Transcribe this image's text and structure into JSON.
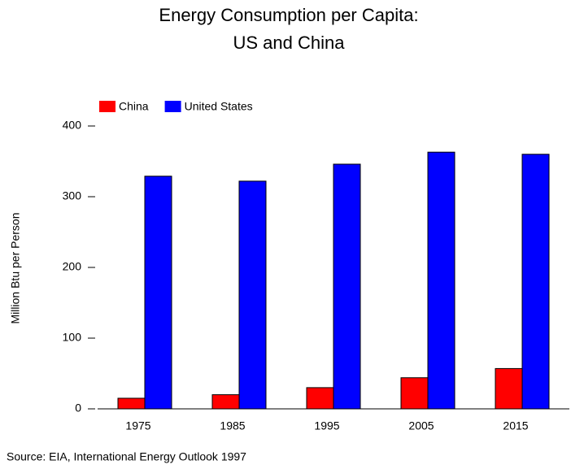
{
  "chart_data": {
    "type": "bar",
    "title": [
      "Energy Consumption per Capita:",
      "US and China"
    ],
    "y_label": "Million Btu per Person",
    "source": "Source:  EIA, International Energy Outlook 1997",
    "categories": [
      "1975",
      "1985",
      "1995",
      "2005",
      "2015"
    ],
    "series": [
      {
        "name": "China",
        "color": "#ff0000",
        "values": [
          15,
          20,
          30,
          44,
          57
        ]
      },
      {
        "name": "United States",
        "color": "#0000ff",
        "values": [
          329,
          322,
          346,
          363,
          360
        ]
      }
    ],
    "ylim": [
      0,
      400
    ],
    "yticks": [
      0,
      100,
      200,
      300,
      400
    ],
    "grid": false
  }
}
